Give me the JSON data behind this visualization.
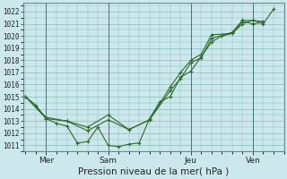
{
  "xlabel": "Pression niveau de la mer( hPa )",
  "bg_color": "#cce8ec",
  "grid_color": "#88bbbb",
  "line_color": "#2d6a2d",
  "ylim": [
    1010.5,
    1022.7
  ],
  "yticks": [
    1011,
    1012,
    1013,
    1014,
    1015,
    1016,
    1017,
    1018,
    1019,
    1020,
    1021,
    1022
  ],
  "x_tick_labels": [
    "Mer",
    "Sam",
    "Jeu",
    "Ven"
  ],
  "x_tick_positions": [
    1,
    4,
    8,
    11
  ],
  "xlim": [
    -0.1,
    12.5
  ],
  "series1_x": [
    0,
    0.5,
    1.0,
    1.5,
    2.0,
    2.5,
    3.0,
    3.5,
    4.0,
    4.5,
    5.0,
    5.5,
    6.0,
    6.5,
    7.0,
    7.5,
    8.0,
    8.5,
    9.0,
    9.5,
    10.0,
    10.5,
    11.0,
    11.5,
    12.0
  ],
  "series1_y": [
    1015.0,
    1014.3,
    1013.2,
    1012.8,
    1012.6,
    1011.2,
    1011.3,
    1012.5,
    1011.0,
    1010.9,
    1011.1,
    1011.2,
    1013.2,
    1014.6,
    1015.0,
    1016.6,
    1017.1,
    1018.3,
    1019.5,
    1020.0,
    1020.2,
    1021.0,
    1021.3,
    1021.0,
    1022.2
  ],
  "series2_x": [
    0,
    1.0,
    2.0,
    3.0,
    4.0,
    5.0,
    6.0,
    7.0,
    7.5,
    8.0,
    8.5,
    9.0,
    10.0,
    10.5,
    11.5
  ],
  "series2_y": [
    1015.0,
    1013.3,
    1013.0,
    1012.2,
    1013.1,
    1012.3,
    1013.1,
    1015.5,
    1016.5,
    1017.8,
    1018.2,
    1019.8,
    1020.3,
    1021.3,
    1021.2
  ],
  "series3_x": [
    0,
    1.0,
    2.0,
    3.0,
    4.0,
    5.0,
    6.0,
    7.0,
    7.5,
    8.0,
    8.5,
    9.0,
    10.0,
    10.5,
    11.0,
    11.5
  ],
  "series3_y": [
    1015.0,
    1013.2,
    1013.0,
    1012.5,
    1013.5,
    1012.3,
    1013.1,
    1015.8,
    1017.0,
    1018.0,
    1018.5,
    1020.1,
    1020.2,
    1021.2,
    1021.0,
    1021.1
  ],
  "ylabel_fontsize": 5.5,
  "xlabel_fontsize": 7.5,
  "xtick_fontsize": 6.5
}
